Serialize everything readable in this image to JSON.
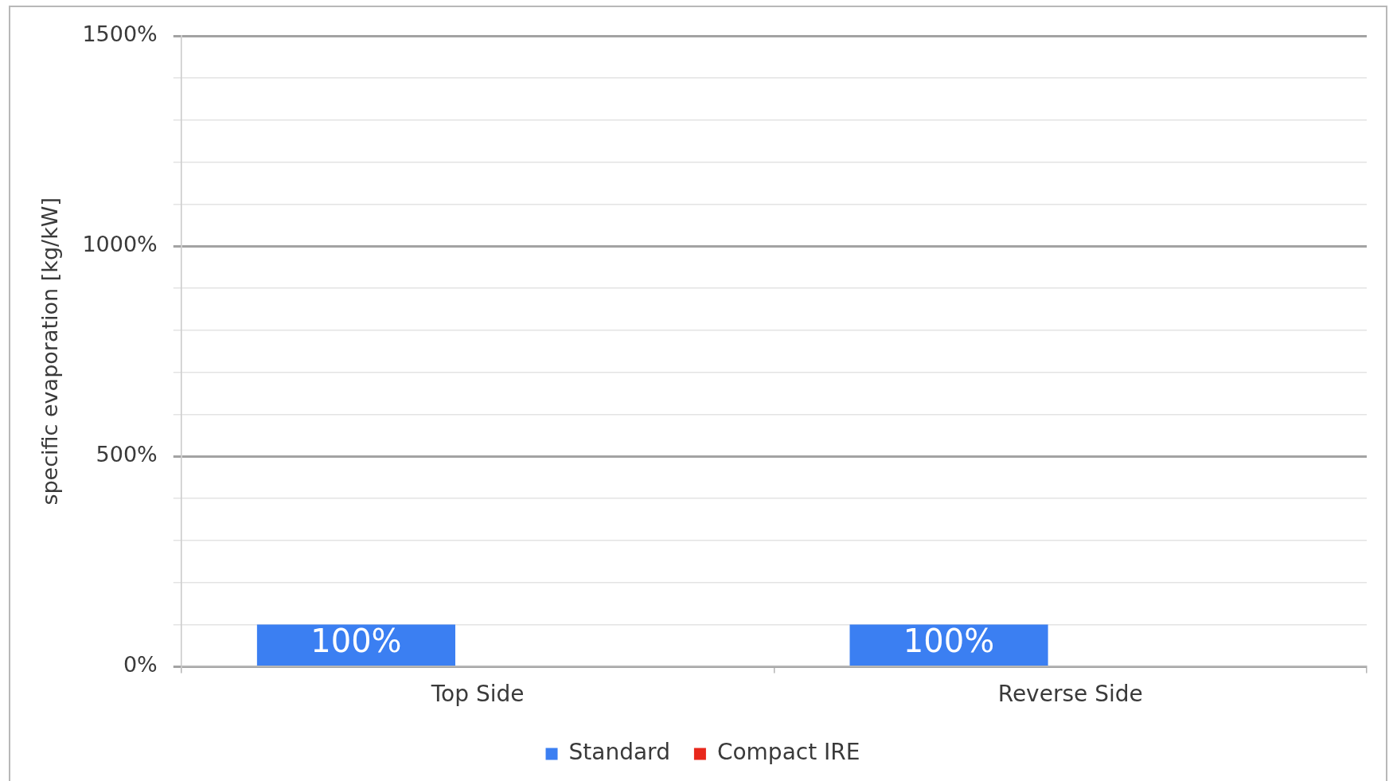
{
  "chart_data": {
    "type": "bar",
    "ylabel": "specific evaporation [kg/kW]",
    "categories": [
      "Top Side",
      "Reverse Side"
    ],
    "series": [
      {
        "name": "Standard",
        "color": "#3b7ff2",
        "values": [
          100,
          100
        ],
        "value_labels": [
          "100%",
          "100%"
        ]
      },
      {
        "name": "Compact IRE",
        "color": "#e8281c",
        "values": [
          null,
          null
        ]
      }
    ],
    "ylim": [
      0,
      1500
    ],
    "yticks": [
      {
        "value": 0,
        "label": "0%"
      },
      {
        "value": 100,
        "label": null
      },
      {
        "value": 200,
        "label": null
      },
      {
        "value": 300,
        "label": null
      },
      {
        "value": 400,
        "label": null
      },
      {
        "value": 500,
        "label": "500%"
      },
      {
        "value": 600,
        "label": null
      },
      {
        "value": 700,
        "label": null
      },
      {
        "value": 800,
        "label": null
      },
      {
        "value": 900,
        "label": null
      },
      {
        "value": 1000,
        "label": "1000%"
      },
      {
        "value": 1100,
        "label": null
      },
      {
        "value": 1200,
        "label": null
      },
      {
        "value": 1300,
        "label": null
      },
      {
        "value": 1400,
        "label": null
      },
      {
        "value": 1500,
        "label": "1500%"
      }
    ],
    "grid": "y",
    "legend": "bottom"
  }
}
